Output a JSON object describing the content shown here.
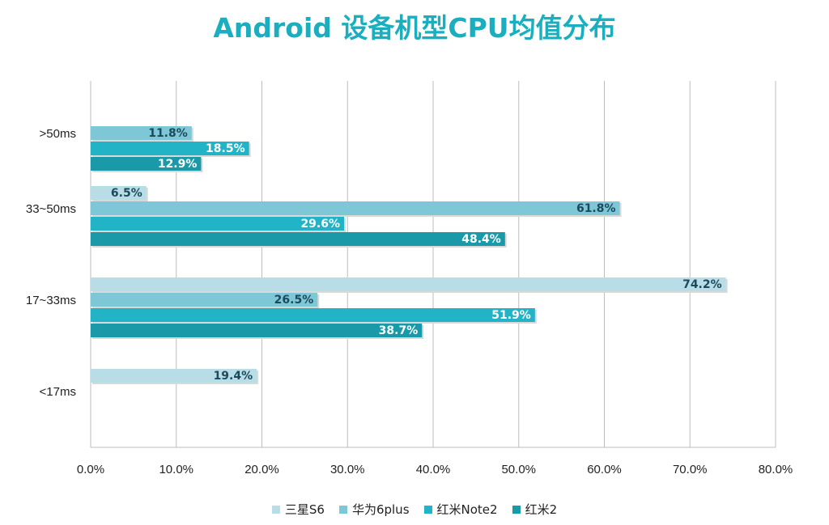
{
  "chart_data": {
    "type": "bar",
    "orientation": "horizontal",
    "title": "Android 设备机型CPU均值分布",
    "categories": [
      ">50ms",
      "33~50ms",
      "17~33ms",
      "<17ms"
    ],
    "series": [
      {
        "name": "三星S6",
        "color": "#b8dde6",
        "values": [
          null,
          6.5,
          74.2,
          19.4
        ],
        "labels": [
          "",
          "6.5%",
          "74.2%",
          "19.4%"
        ],
        "label_color": "#1b4a5c"
      },
      {
        "name": "华为6plus",
        "color": "#7ec7d6",
        "values": [
          11.8,
          61.8,
          26.5,
          null
        ],
        "labels": [
          "11.8%",
          "61.8%",
          "26.5%",
          ""
        ],
        "label_color": "#1b4a5c"
      },
      {
        "name": "红米Note2",
        "color": "#22b3c7",
        "values": [
          18.5,
          29.6,
          51.9,
          null
        ],
        "labels": [
          "18.5%",
          "29.6%",
          "51.9%",
          ""
        ],
        "label_color": "#ffffff"
      },
      {
        "name": "红米2",
        "color": "#1a9aa9",
        "values": [
          12.9,
          48.4,
          38.7,
          null
        ],
        "labels": [
          "12.9%",
          "48.4%",
          "38.7%",
          ""
        ],
        "label_color": "#ffffff"
      }
    ],
    "x_ticks": [
      "0.0%",
      "10.0%",
      "20.0%",
      "30.0%",
      "40.0%",
      "50.0%",
      "60.0%",
      "70.0%",
      "80.0%"
    ],
    "xlim": [
      0,
      80
    ],
    "grid": true,
    "legend_position": "bottom"
  }
}
